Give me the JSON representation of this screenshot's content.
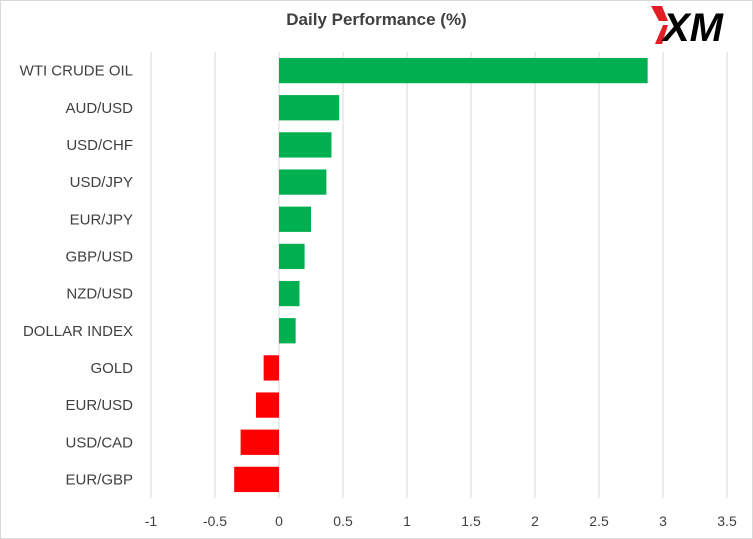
{
  "chart_data": {
    "type": "bar",
    "orientation": "horizontal",
    "title": "Daily Performance  (%)",
    "categories": [
      "WTI CRUDE OIL",
      "AUD/USD",
      "USD/CHF",
      "USD/JPY",
      "EUR/JPY",
      "GBP/USD",
      "NZD/USD",
      "DOLLAR INDEX",
      "GOLD",
      "EUR/USD",
      "USD/CAD",
      "EUR/GBP"
    ],
    "values": [
      2.88,
      0.47,
      0.41,
      0.37,
      0.25,
      0.2,
      0.16,
      0.13,
      -0.12,
      -0.18,
      -0.3,
      -0.35
    ],
    "xlim": [
      -1,
      3.5
    ],
    "xticks": [
      -1,
      -0.5,
      0,
      0.5,
      1,
      1.5,
      2,
      2.5,
      3,
      3.5
    ],
    "xtick_labels": [
      "-1",
      "-0.5",
      "0",
      "0.5",
      "1",
      "1.5",
      "2",
      "2.5",
      "3",
      "3.5"
    ],
    "grid": "vertical",
    "colors": {
      "positive": "#00b050",
      "negative": "#ff0000",
      "grid": "#d9d9d9",
      "text": "#404040"
    }
  },
  "logo": {
    "text": "XM",
    "accent": "#e31e24",
    "color": "#000000"
  }
}
